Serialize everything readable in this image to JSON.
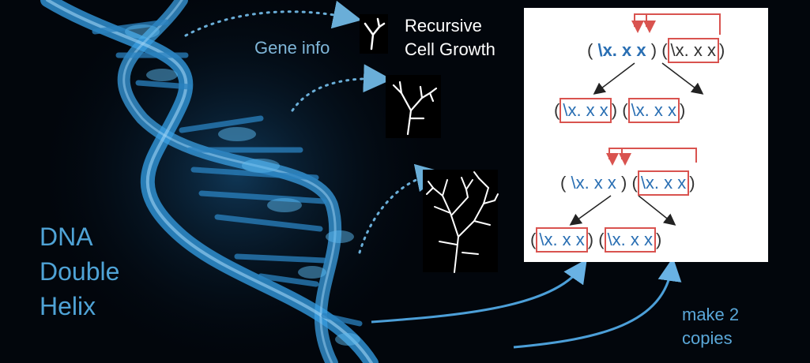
{
  "labels": {
    "gene_info": "Gene info",
    "recursive_line1": "Recursive",
    "recursive_line2": "Cell Growth",
    "dna_line1": "DNA",
    "dna_line2": "Double",
    "dna_line3": "Helix",
    "copies_line1": "make 2",
    "copies_line2": "copies"
  },
  "panel": {
    "lambda": "\\x. x x",
    "lambda_bold": "\\x. x x",
    "open_paren": "(",
    "close_paren": ")"
  },
  "colors": {
    "background": "#02060c",
    "helix": "#2f8fd0",
    "label_blue": "#4fa3d6",
    "box_red": "#d9534f",
    "lambda_blue": "#2a6fb3"
  },
  "icons": [
    "dna-helix-image",
    "small-tree-icon",
    "medium-tree-icon",
    "large-tree-icon"
  ]
}
